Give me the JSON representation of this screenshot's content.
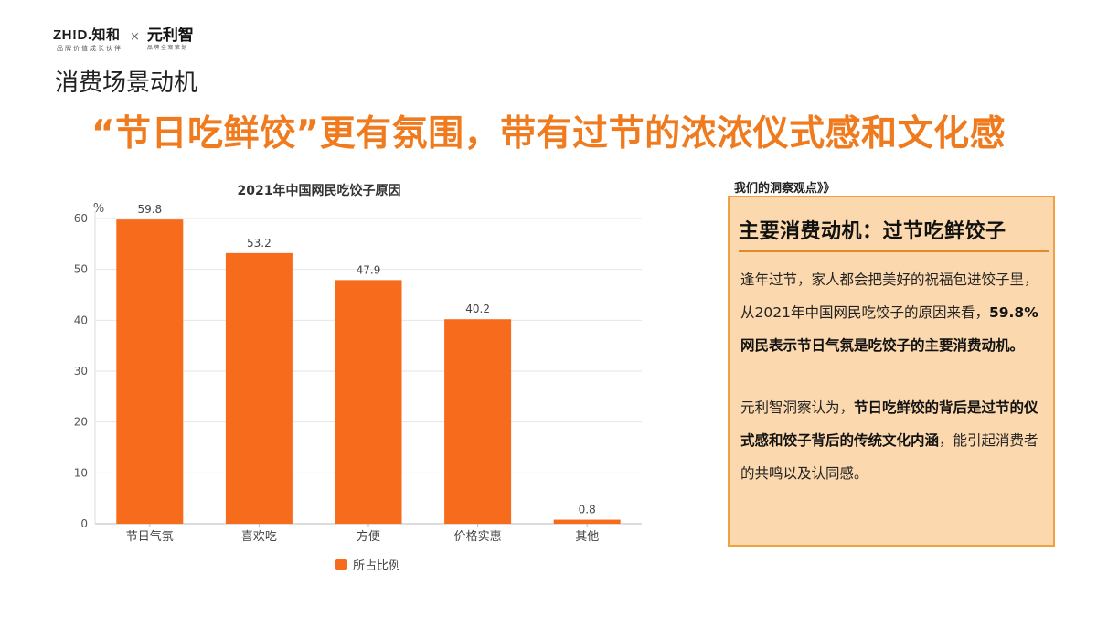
{
  "logo": {
    "zhid_main": "ZH!D.知和",
    "zhid_sub": "品牌价值成长伙伴",
    "separator": "×",
    "ylz_main": "元利智",
    "ylz_sub": "品牌全案策划"
  },
  "section_title": "消费场景动机",
  "headline": "“节日吃鲜饺”更有氛围，带有过节的浓浓仪式感和文化感",
  "chart_data": {
    "type": "bar",
    "title": "2021年中国网民吃饺子原因",
    "ylabel": "%",
    "xlabel": "",
    "categories": [
      "节日气氛",
      "喜欢吃",
      "方便",
      "价格实惠",
      "其他"
    ],
    "series": [
      {
        "name": "所占比例",
        "values": [
          59.8,
          53.2,
          47.9,
          40.2,
          0.8
        ]
      }
    ],
    "value_labels": [
      "59.8",
      "53.2",
      "47.9",
      "40.2",
      "0.8"
    ],
    "ylim": [
      0,
      60
    ],
    "yticks": [
      0,
      10,
      20,
      30,
      40,
      50,
      60
    ],
    "grid": true,
    "legend_position": "bottom",
    "bar_color": "#f76b1c"
  },
  "insight": {
    "label": "我们的洞察观点》》",
    "title": "主要消费动机：过节吃鲜饺子",
    "p1_normal": "逢年过节，家人都会把美好的祝福包进饺子里，从2021年中国网民吃饺子的原因来看，",
    "p1_bold": "59.8%网民表示节日气氛是吃饺子的主要消费动机。",
    "p2_normal_a": "元利智洞察认为，",
    "p2_bold": "节日吃鲜饺的背后是过节的仪式感和饺子背后的传统文化内涵",
    "p2_normal_b": "，能引起消费者的共鸣以及认同感。"
  },
  "colors": {
    "accent": "#f07b1e",
    "panel_bg": "#fbd8ad",
    "panel_border": "#f0a23e"
  }
}
